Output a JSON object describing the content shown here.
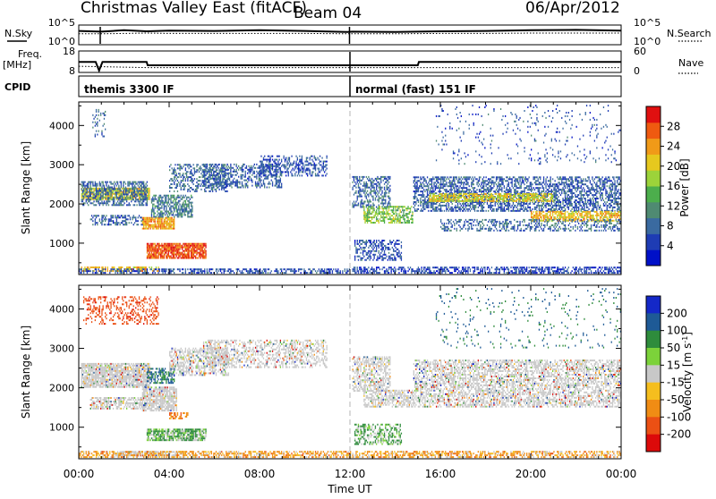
{
  "header": {
    "title": "Christmas Valley East (fitACF)",
    "beam": "Beam 04",
    "date": "06/Apr/2012"
  },
  "chart_data": [
    {
      "type": "line",
      "panel": "noise",
      "left_label": "N.Sky",
      "right_label": "N.Search",
      "left_ticks": [
        "10^5",
        "10^0"
      ],
      "right_ticks": [
        "10^5",
        "10^0"
      ],
      "x": [
        0,
        1,
        2,
        3,
        4,
        6,
        8,
        10,
        11.9,
        12.1,
        14,
        16,
        18,
        20,
        22,
        24
      ],
      "values": [
        3.6,
        3.4,
        3.8,
        3.5,
        3.7,
        3.6,
        3.8,
        3.6,
        3.3,
        3.4,
        3.3,
        3.5,
        3.6,
        3.8,
        3.9,
        3.7
      ],
      "search_values": [
        2.8,
        2.8,
        2.9,
        3.0,
        2.9,
        2.9,
        2.9,
        2.9,
        2.8,
        2.8,
        2.8,
        2.9,
        2.9,
        3.0,
        3.0,
        3.0
      ]
    },
    {
      "type": "line",
      "panel": "frequency",
      "left_label": "Freq.",
      "left_unit": "[MHz]",
      "right_label": "Nave",
      "left_ticks": [
        "18",
        "8"
      ],
      "right_ticks": [
        "60",
        "0"
      ],
      "freq_steps": [
        [
          0,
          12.9
        ],
        [
          0.75,
          12.9
        ],
        [
          0.9,
          8.5
        ],
        [
          1.05,
          12.9
        ],
        [
          3.0,
          12.9
        ],
        [
          3.05,
          11.2
        ],
        [
          11.95,
          11.2
        ],
        [
          12.05,
          11.2
        ],
        [
          15.0,
          11.2
        ],
        [
          15.05,
          12.9
        ],
        [
          24,
          12.9
        ]
      ],
      "nave": [
        [
          0,
          16
        ],
        [
          3.0,
          12
        ],
        [
          12.05,
          12
        ],
        [
          24,
          12
        ]
      ]
    },
    {
      "type": "label",
      "panel": "cpid",
      "label": "CPID",
      "segments": [
        {
          "start": 0,
          "end": 12,
          "text": "themis 3300 IF"
        },
        {
          "start": 12,
          "end": 24,
          "text": "normal (fast) 151 IF"
        }
      ]
    },
    {
      "type": "heatmap",
      "panel": "power",
      "ylabel": "Slant Range [km]",
      "ylim": [
        200,
        4600
      ],
      "yticks": [
        1000,
        2000,
        3000,
        4000
      ],
      "xlim": [
        0,
        24
      ],
      "colorbar_label": "Power [dB]",
      "colorbar_ticks": [
        4,
        8,
        12,
        16,
        20,
        24,
        28
      ],
      "colorbar_range": [
        0,
        32
      ],
      "colors": [
        "#0010c8",
        "#1e3cb4",
        "#3a6aa0",
        "#4f8a72",
        "#4cae4c",
        "#9cd33a",
        "#e6c81e",
        "#f09a18",
        "#ef5a10",
        "#e01010"
      ],
      "bands": [
        {
          "t": [
            0.1,
            3.1
          ],
          "r": [
            2100,
            2400
          ],
          "p": 20,
          "density": 0.9
        },
        {
          "t": [
            0.1,
            3.0
          ],
          "r": [
            1950,
            2550
          ],
          "p": 8,
          "density": 0.55
        },
        {
          "t": [
            0.6,
            1.2
          ],
          "r": [
            3700,
            4400
          ],
          "p": 8,
          "density": 0.25
        },
        {
          "t": [
            0.5,
            2.8
          ],
          "r": [
            1450,
            1700
          ],
          "p": 7,
          "density": 0.45
        },
        {
          "t": [
            2.8,
            4.2
          ],
          "r": [
            1350,
            1650
          ],
          "p": 24,
          "density": 0.85
        },
        {
          "t": [
            3.2,
            5.0
          ],
          "r": [
            1650,
            2200
          ],
          "p": 10,
          "density": 0.6
        },
        {
          "t": [
            4.0,
            6.6
          ],
          "r": [
            2300,
            3000
          ],
          "p": 8,
          "density": 0.45
        },
        {
          "t": [
            5.5,
            9.0
          ],
          "r": [
            2400,
            3000
          ],
          "p": 7,
          "density": 0.45
        },
        {
          "t": [
            8.0,
            11.0
          ],
          "r": [
            2700,
            3200
          ],
          "p": 6,
          "density": 0.4
        },
        {
          "t": [
            3.0,
            5.6
          ],
          "r": [
            600,
            1000
          ],
          "p": 28,
          "density": 0.85
        },
        {
          "t": [
            0.1,
            3.5
          ],
          "r": [
            270,
            380
          ],
          "p": 22,
          "density": 0.55
        },
        {
          "t": [
            12.1,
            13.8
          ],
          "r": [
            1900,
            2700
          ],
          "p": 8,
          "density": 0.5
        },
        {
          "t": [
            12.6,
            14.8
          ],
          "r": [
            1500,
            1950
          ],
          "p": 16,
          "density": 0.6
        },
        {
          "t": [
            12.2,
            14.3
          ],
          "r": [
            550,
            1050
          ],
          "p": 6,
          "density": 0.45
        },
        {
          "t": [
            14.8,
            24.0
          ],
          "r": [
            1800,
            2700
          ],
          "p": 7,
          "density": 0.55
        },
        {
          "t": [
            15.5,
            21.0
          ],
          "r": [
            2050,
            2250
          ],
          "p": 20,
          "density": 0.7
        },
        {
          "t": [
            20.0,
            24.0
          ],
          "r": [
            1550,
            1800
          ],
          "p": 22,
          "density": 0.7
        },
        {
          "t": [
            16.0,
            24.0
          ],
          "r": [
            1300,
            1600
          ],
          "p": 8,
          "density": 0.4
        },
        {
          "t": [
            12.1,
            24.0
          ],
          "r": [
            220,
            400
          ],
          "p": 5,
          "density": 0.55
        },
        {
          "t": [
            0.0,
            12.0
          ],
          "r": [
            220,
            320
          ],
          "p": 6,
          "density": 0.5
        },
        {
          "t": [
            15.8,
            24.0
          ],
          "r": [
            3000,
            4500
          ],
          "p": 6,
          "density": 0.05
        }
      ]
    },
    {
      "type": "heatmap",
      "panel": "velocity",
      "ylabel": "Slant Range [km]",
      "ylim": [
        200,
        4600
      ],
      "yticks": [
        1000,
        2000,
        3000,
        4000
      ],
      "xlim": [
        0,
        24
      ],
      "xlabel": "Time UT",
      "xtick_labels": [
        "00:00",
        "04:00",
        "08:00",
        "12:00",
        "16:00",
        "20:00",
        "00:00"
      ],
      "colorbar_label": "Velocity [m s^-1]",
      "colorbar_ticks": [
        200,
        100,
        50,
        15,
        -15,
        -50,
        -100,
        -200
      ],
      "colors": [
        "#1428c8",
        "#1e5a96",
        "#2e8c3c",
        "#7cd23a",
        "#c8c8c8",
        "#f5be1e",
        "#f08c14",
        "#eb5014",
        "#dc0a0a"
      ],
      "bands": [
        {
          "t": [
            0.1,
            3.1
          ],
          "r": [
            2000,
            2600
          ],
          "v": 0,
          "density": 0.85
        },
        {
          "t": [
            0.2,
            3.5
          ],
          "r": [
            3600,
            4300
          ],
          "v": -120,
          "density": 0.3
        },
        {
          "t": [
            0.5,
            2.8
          ],
          "r": [
            1450,
            1750
          ],
          "v": 0,
          "density": 0.6
        },
        {
          "t": [
            2.8,
            4.3
          ],
          "r": [
            1400,
            2000
          ],
          "v": 0,
          "density": 0.8
        },
        {
          "t": [
            3.0,
            4.2
          ],
          "r": [
            2100,
            2500
          ],
          "v": 80,
          "density": 0.55
        },
        {
          "t": [
            4.0,
            6.6
          ],
          "r": [
            2300,
            3000
          ],
          "v": 0,
          "density": 0.5
        },
        {
          "t": [
            5.5,
            11.0
          ],
          "r": [
            2500,
            3200
          ],
          "v": 0,
          "density": 0.45
        },
        {
          "t": [
            3.0,
            5.6
          ],
          "r": [
            650,
            950
          ],
          "v": 30,
          "density": 0.85
        },
        {
          "t": [
            1.5,
            4.5
          ],
          "r": [
            260,
            360
          ],
          "v": 0,
          "density": 0.6
        },
        {
          "t": [
            4.0,
            4.8
          ],
          "r": [
            1200,
            1350
          ],
          "v": -60,
          "density": 0.5
        },
        {
          "t": [
            12.1,
            13.8
          ],
          "r": [
            1900,
            2800
          ],
          "v": 0,
          "density": 0.55
        },
        {
          "t": [
            12.6,
            14.8
          ],
          "r": [
            1500,
            1950
          ],
          "v": 0,
          "density": 0.6
        },
        {
          "t": [
            12.2,
            14.3
          ],
          "r": [
            550,
            1050
          ],
          "v": 35,
          "density": 0.5
        },
        {
          "t": [
            14.8,
            24.0
          ],
          "r": [
            1500,
            2700
          ],
          "v": 0,
          "density": 0.55
        },
        {
          "t": [
            0.0,
            24.0
          ],
          "r": [
            220,
            360
          ],
          "v": -40,
          "density": 0.55
        },
        {
          "t": [
            15.8,
            24.0
          ],
          "r": [
            3000,
            4500
          ],
          "v": 80,
          "density": 0.05
        }
      ]
    }
  ]
}
